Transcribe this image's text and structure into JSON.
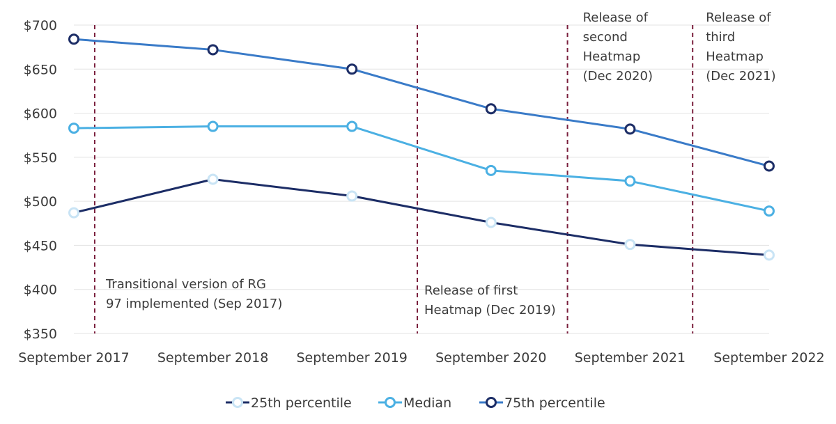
{
  "chart_data": {
    "type": "line",
    "title": "",
    "xlabel": "",
    "ylabel": "",
    "categories": [
      "September 2017",
      "September 2018",
      "September 2019",
      "September 2020",
      "September 2021",
      "September 2022"
    ],
    "yticks": [
      "$700",
      "$650",
      "$600",
      "$550",
      "$500",
      "$450",
      "$400",
      "$350"
    ],
    "ylim": [
      350,
      700
    ],
    "grid": true,
    "legend_position": "bottom",
    "series": [
      {
        "name": "25th percentile",
        "values": [
          487,
          525,
          506,
          476,
          451,
          439
        ],
        "line_color": "#1c2d66",
        "marker_color": "#c9e4f5"
      },
      {
        "name": "Median",
        "values": [
          583,
          585,
          585,
          535,
          523,
          489
        ],
        "line_color": "#4bb0e3",
        "marker_color": "#4bb0e3"
      },
      {
        "name": "75th percentile",
        "values": [
          684,
          672,
          650,
          605,
          582,
          540
        ],
        "line_color": "#3a7bc8",
        "marker_color": "#1c2d66"
      }
    ],
    "event_lines": [
      {
        "x": 0.15,
        "label_lines": [
          "Transitional version of RG",
          "97 implemented (Sep 2017)"
        ]
      },
      {
        "x": 2.47,
        "label_lines": [
          "Release of first",
          "Heatmap (Dec 2019)"
        ]
      },
      {
        "x": 3.55,
        "label_lines": [
          "Release of",
          "second",
          "Heatmap",
          "(Dec 2020)"
        ]
      },
      {
        "x": 4.45,
        "label_lines": [
          "Release of",
          "third",
          "Heatmap",
          "(Dec 2021)"
        ]
      }
    ],
    "event_line_color": "#7a1f3d"
  }
}
